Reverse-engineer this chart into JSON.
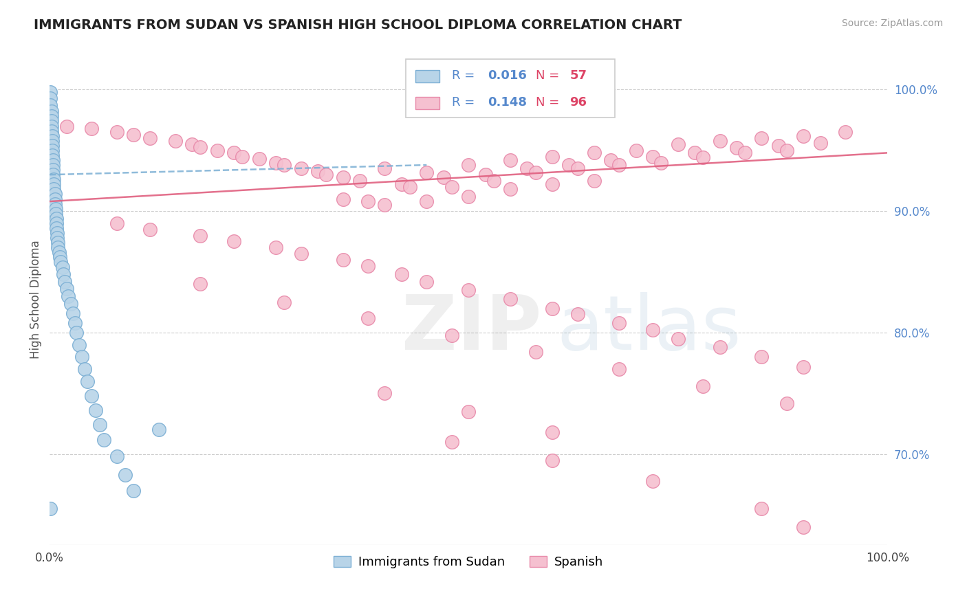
{
  "title": "IMMIGRANTS FROM SUDAN VS SPANISH HIGH SCHOOL DIPLOMA CORRELATION CHART",
  "source": "Source: ZipAtlas.com",
  "ylabel": "High School Diploma",
  "xlim": [
    0.0,
    1.0
  ],
  "ylim": [
    0.625,
    1.03
  ],
  "y_tick_vals_right": [
    0.7,
    0.8,
    0.9,
    1.0
  ],
  "y_tick_labels_right": [
    "70.0%",
    "80.0%",
    "90.0%",
    "100.0%"
  ],
  "grid_color": "#cccccc",
  "background_color": "#ffffff",
  "blue_color": "#7bafd4",
  "blue_face_color": "#b8d4e8",
  "pink_color": "#e88aaa",
  "pink_face_color": "#f5c0d0",
  "blue_R": "0.016",
  "blue_N": "57",
  "pink_R": "0.148",
  "pink_N": "96",
  "blue_trend_x": [
    0.0,
    0.45
  ],
  "blue_trend_y": [
    0.93,
    0.938
  ],
  "pink_trend_x": [
    0.0,
    1.0
  ],
  "pink_trend_y": [
    0.908,
    0.948
  ],
  "legend_label_blue": "Immigrants from Sudan",
  "legend_label_pink": "Spanish",
  "blue_scatter_x": [
    0.001,
    0.001,
    0.001,
    0.002,
    0.002,
    0.002,
    0.002,
    0.002,
    0.003,
    0.003,
    0.003,
    0.003,
    0.003,
    0.004,
    0.004,
    0.004,
    0.004,
    0.005,
    0.005,
    0.005,
    0.006,
    0.006,
    0.006,
    0.007,
    0.007,
    0.008,
    0.008,
    0.008,
    0.009,
    0.009,
    0.01,
    0.01,
    0.011,
    0.012,
    0.013,
    0.015,
    0.016,
    0.018,
    0.02,
    0.022,
    0.025,
    0.028,
    0.03,
    0.032,
    0.035,
    0.038,
    0.042,
    0.045,
    0.05,
    0.055,
    0.06,
    0.065,
    0.08,
    0.09,
    0.1,
    0.13,
    0.001
  ],
  "blue_scatter_y": [
    0.998,
    0.993,
    0.987,
    0.982,
    0.978,
    0.974,
    0.97,
    0.966,
    0.962,
    0.958,
    0.954,
    0.95,
    0.946,
    0.942,
    0.938,
    0.934,
    0.93,
    0.926,
    0.922,
    0.918,
    0.914,
    0.91,
    0.906,
    0.902,
    0.898,
    0.894,
    0.89,
    0.886,
    0.882,
    0.878,
    0.874,
    0.87,
    0.866,
    0.862,
    0.858,
    0.854,
    0.848,
    0.842,
    0.836,
    0.83,
    0.824,
    0.816,
    0.808,
    0.8,
    0.79,
    0.78,
    0.77,
    0.76,
    0.748,
    0.736,
    0.724,
    0.712,
    0.698,
    0.683,
    0.67,
    0.72,
    0.655
  ],
  "pink_scatter_x": [
    0.02,
    0.05,
    0.08,
    0.1,
    0.12,
    0.15,
    0.17,
    0.18,
    0.2,
    0.22,
    0.23,
    0.25,
    0.27,
    0.28,
    0.3,
    0.32,
    0.33,
    0.35,
    0.35,
    0.37,
    0.38,
    0.4,
    0.4,
    0.42,
    0.43,
    0.45,
    0.45,
    0.47,
    0.48,
    0.5,
    0.5,
    0.52,
    0.53,
    0.55,
    0.55,
    0.57,
    0.58,
    0.6,
    0.6,
    0.62,
    0.63,
    0.65,
    0.65,
    0.67,
    0.68,
    0.7,
    0.72,
    0.73,
    0.75,
    0.77,
    0.78,
    0.8,
    0.82,
    0.83,
    0.85,
    0.87,
    0.88,
    0.9,
    0.92,
    0.95,
    0.08,
    0.12,
    0.18,
    0.22,
    0.27,
    0.3,
    0.35,
    0.38,
    0.42,
    0.45,
    0.5,
    0.55,
    0.6,
    0.63,
    0.68,
    0.72,
    0.75,
    0.8,
    0.85,
    0.9,
    0.18,
    0.28,
    0.38,
    0.48,
    0.58,
    0.68,
    0.78,
    0.88,
    0.4,
    0.5,
    0.6,
    0.48,
    0.6,
    0.72,
    0.85,
    0.9
  ],
  "pink_scatter_y": [
    0.97,
    0.968,
    0.965,
    0.963,
    0.96,
    0.958,
    0.955,
    0.953,
    0.95,
    0.948,
    0.945,
    0.943,
    0.94,
    0.938,
    0.935,
    0.933,
    0.93,
    0.928,
    0.91,
    0.925,
    0.908,
    0.935,
    0.905,
    0.922,
    0.92,
    0.932,
    0.908,
    0.928,
    0.92,
    0.938,
    0.912,
    0.93,
    0.925,
    0.942,
    0.918,
    0.935,
    0.932,
    0.945,
    0.922,
    0.938,
    0.935,
    0.948,
    0.925,
    0.942,
    0.938,
    0.95,
    0.945,
    0.94,
    0.955,
    0.948,
    0.944,
    0.958,
    0.952,
    0.948,
    0.96,
    0.954,
    0.95,
    0.962,
    0.956,
    0.965,
    0.89,
    0.885,
    0.88,
    0.875,
    0.87,
    0.865,
    0.86,
    0.855,
    0.848,
    0.842,
    0.835,
    0.828,
    0.82,
    0.815,
    0.808,
    0.802,
    0.795,
    0.788,
    0.78,
    0.772,
    0.84,
    0.825,
    0.812,
    0.798,
    0.784,
    0.77,
    0.756,
    0.742,
    0.75,
    0.735,
    0.718,
    0.71,
    0.695,
    0.678,
    0.655,
    0.64
  ]
}
